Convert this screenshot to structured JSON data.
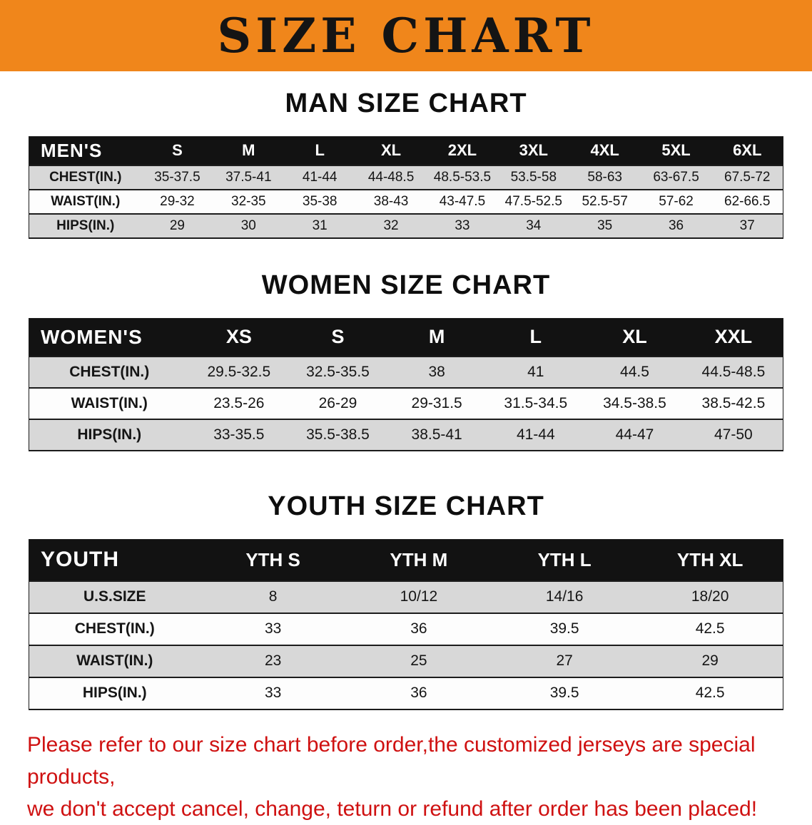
{
  "banner": {
    "title": "SIZE CHART"
  },
  "colors": {
    "banner_bg": "#f0861b",
    "table_header_bg": "#121212",
    "row_alt_bg": "#d8d8d8",
    "footer_text": "#cf1111"
  },
  "men": {
    "heading": "MAN SIZE CHART",
    "corner": "MEN'S",
    "sizes": [
      "S",
      "M",
      "L",
      "XL",
      "2XL",
      "3XL",
      "4XL",
      "5XL",
      "6XL"
    ],
    "rows": [
      {
        "label": "CHEST(IN.)",
        "values": [
          "35-37.5",
          "37.5-41",
          "41-44",
          "44-48.5",
          "48.5-53.5",
          "53.5-58",
          "58-63",
          "63-67.5",
          "67.5-72"
        ]
      },
      {
        "label": "WAIST(IN.)",
        "values": [
          "29-32",
          "32-35",
          "35-38",
          "38-43",
          "43-47.5",
          "47.5-52.5",
          "52.5-57",
          "57-62",
          "62-66.5"
        ]
      },
      {
        "label": "HIPS(IN.)",
        "values": [
          "29",
          "30",
          "31",
          "32",
          "33",
          "34",
          "35",
          "36",
          "37"
        ]
      }
    ]
  },
  "women": {
    "heading": "WOMEN SIZE CHART",
    "corner": "WOMEN'S",
    "sizes": [
      "XS",
      "S",
      "M",
      "L",
      "XL",
      "XXL"
    ],
    "rows": [
      {
        "label": "CHEST(IN.)",
        "values": [
          "29.5-32.5",
          "32.5-35.5",
          "38",
          "41",
          "44.5",
          "44.5-48.5"
        ]
      },
      {
        "label": "WAIST(IN.)",
        "values": [
          "23.5-26",
          "26-29",
          "29-31.5",
          "31.5-34.5",
          "34.5-38.5",
          "38.5-42.5"
        ]
      },
      {
        "label": "HIPS(IN.)",
        "values": [
          "33-35.5",
          "35.5-38.5",
          "38.5-41",
          "41-44",
          "44-47",
          "47-50"
        ]
      }
    ]
  },
  "youth": {
    "heading": "YOUTH SIZE CHART",
    "corner": "YOUTH",
    "sizes": [
      "YTH S",
      "YTH M",
      "YTH L",
      "YTH XL"
    ],
    "rows": [
      {
        "label": "U.S.SIZE",
        "values": [
          "8",
          "10/12",
          "14/16",
          "18/20"
        ]
      },
      {
        "label": "CHEST(IN.)",
        "values": [
          "33",
          "36",
          "39.5",
          "42.5"
        ]
      },
      {
        "label": "WAIST(IN.)",
        "values": [
          "23",
          "25",
          "27",
          "29"
        ]
      },
      {
        "label": "HIPS(IN.)",
        "values": [
          "33",
          "36",
          "39.5",
          "42.5"
        ]
      }
    ]
  },
  "footer": {
    "line1": "Please refer to our size chart before order,the customized jerseys are special products,",
    "line2": "we don't accept cancel, change, teturn or refund after order has been placed!"
  }
}
